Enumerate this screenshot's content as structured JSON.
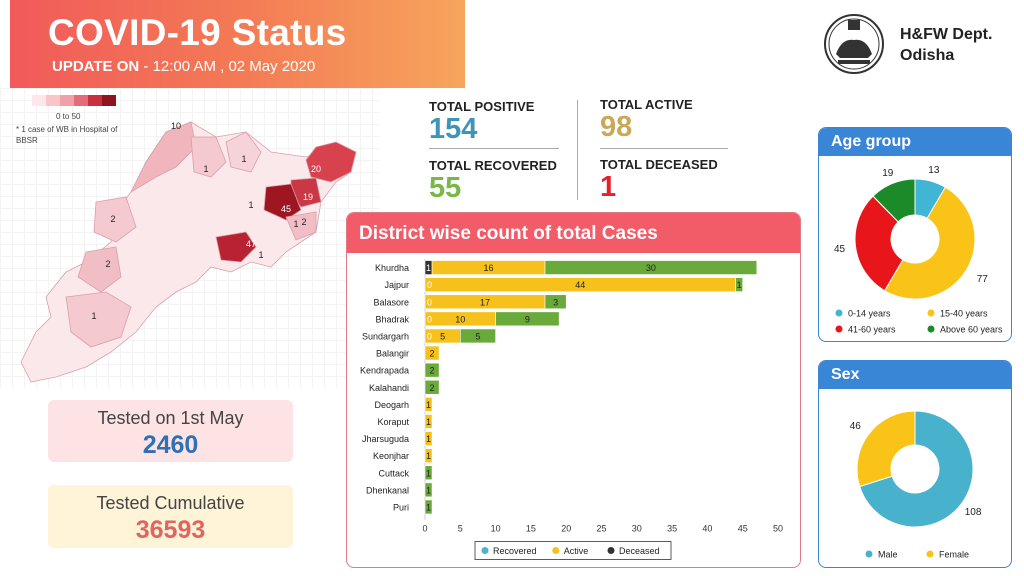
{
  "header": {
    "title": "COVID-19 Status",
    "update_prefix": "UPDATE ON",
    "update_value": "- 12:00 AM , 02 May 2020",
    "dept_line1": "H&FW Dept.",
    "dept_line2": "Odisha"
  },
  "map": {
    "legend_range": "0 to 50",
    "legend_note": "* 1 case of WB in Hospital of BBSR",
    "legend_colors": [
      "#fde7ea",
      "#f8c5cb",
      "#f1a0aa",
      "#e46b7a",
      "#c8303f",
      "#8f1420"
    ],
    "district_labels": [
      {
        "value": "10"
      },
      {
        "value": "1"
      },
      {
        "value": "1"
      },
      {
        "value": "1"
      },
      {
        "value": "20"
      },
      {
        "value": "45"
      },
      {
        "value": "19"
      },
      {
        "value": "1"
      },
      {
        "value": "2"
      },
      {
        "value": "2"
      },
      {
        "value": "47"
      },
      {
        "value": "2"
      },
      {
        "value": "1"
      },
      {
        "value": "1"
      }
    ]
  },
  "totals": {
    "positive_label": "TOTAL POSITIVE",
    "positive_value": "154",
    "recovered_label": "TOTAL RECOVERED",
    "recovered_value": "55",
    "active_label": "TOTAL ACTIVE",
    "active_value": "98",
    "deceased_label": "TOTAL DECEASED",
    "deceased_value": "1",
    "colors": {
      "positive": "#3e95b8",
      "recovered": "#7ab648",
      "active": "#c9a857",
      "deceased": "#e4222a"
    }
  },
  "tested": {
    "day_label": "Tested on 1st May",
    "day_value": "2460",
    "cumulative_label": "Tested Cumulative",
    "cumulative_value": "36593"
  },
  "chart_data": [
    {
      "type": "bar",
      "orientation": "horizontal-stacked",
      "title": "District wise count of total Cases",
      "categories": [
        "Khurdha",
        "Jajpur",
        "Balasore",
        "Bhadrak",
        "Sundargarh",
        "Balangir",
        "Kendrapada",
        "Kalahandi",
        "Deogarh",
        "Koraput",
        "Jharsuguda",
        "Keonjhar",
        "Cuttack",
        "Dhenkanal",
        "Puri"
      ],
      "series": [
        {
          "name": "Deceased",
          "color": "#333333",
          "values": [
            1,
            0,
            0,
            0,
            0,
            0,
            0,
            0,
            0,
            0,
            0,
            0,
            0,
            0,
            0
          ]
        },
        {
          "name": "Active",
          "color": "#f5c11a",
          "values": [
            16,
            44,
            17,
            10,
            5,
            2,
            0,
            0,
            1,
            1,
            1,
            1,
            0,
            0,
            0
          ]
        },
        {
          "name": "Recovered",
          "color": "#6aaa3a",
          "values": [
            30,
            1,
            3,
            9,
            5,
            0,
            2,
            2,
            0,
            0,
            0,
            0,
            1,
            1,
            1
          ]
        }
      ],
      "legend": [
        {
          "name": "Recovered",
          "color": "#4bb2cf"
        },
        {
          "name": "Active",
          "color": "#f5c11a"
        },
        {
          "name": "Deceased",
          "color": "#333333"
        }
      ],
      "zero_labels": [
        "0",
        "0",
        "0",
        "0"
      ],
      "xticks": [
        0,
        5,
        10,
        15,
        20,
        25,
        30,
        35,
        40,
        45,
        50
      ],
      "xlim": [
        0,
        50
      ],
      "legend_position": "bottom"
    },
    {
      "type": "pie",
      "title": "Age group",
      "labels": [
        "0-14 years",
        "15-40 years",
        "41-60 years",
        "Above 60 years"
      ],
      "values": [
        13,
        77,
        45,
        19
      ],
      "colors": [
        "#41b5d4",
        "#f9c318",
        "#e8151b",
        "#1d8a2a"
      ],
      "legend_position": "bottom"
    },
    {
      "type": "pie",
      "title": "Sex",
      "labels": [
        "Male",
        "Female"
      ],
      "values": [
        108,
        46
      ],
      "colors": [
        "#48b1cc",
        "#f9c318"
      ],
      "legend_position": "bottom"
    }
  ]
}
